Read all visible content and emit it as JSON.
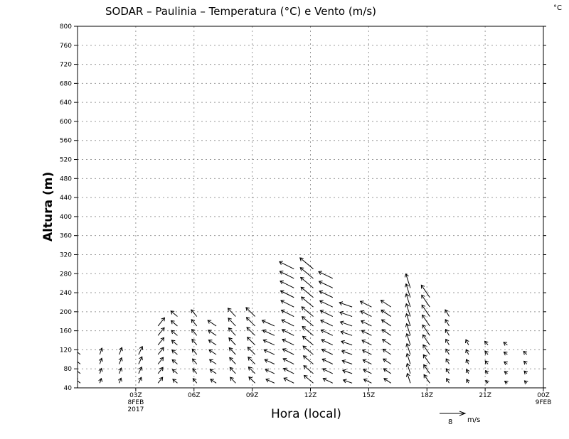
{
  "chart_data": {
    "type": "wind_barb_profile",
    "title": "SODAR – Paulinia – Temperatura (°C) e Vento (m/s)",
    "unit_corner": "°C",
    "ylabel": "Altura (m)",
    "xlabel": "Hora (local)",
    "ylim": [
      40,
      800
    ],
    "y_ticks": [
      40,
      80,
      120,
      160,
      200,
      240,
      280,
      320,
      360,
      400,
      440,
      480,
      520,
      560,
      600,
      640,
      680,
      720,
      760,
      800
    ],
    "xlim_hours": [
      0,
      24
    ],
    "x_ticks": [
      {
        "hour": 3,
        "label": "03Z",
        "sub": [
          "8FEB",
          "2017"
        ]
      },
      {
        "hour": 6,
        "label": "06Z",
        "sub": []
      },
      {
        "hour": 9,
        "label": "09Z",
        "sub": []
      },
      {
        "hour": 12,
        "label": "12Z",
        "sub": []
      },
      {
        "hour": 15,
        "label": "15Z",
        "sub": []
      },
      {
        "hour": 18,
        "label": "18Z",
        "sub": []
      },
      {
        "hour": 21,
        "label": "21Z",
        "sub": []
      },
      {
        "hour": 24,
        "label": "00Z",
        "sub": [
          "9FEB"
        ]
      }
    ],
    "grid": true,
    "reference_vector": {
      "speed": 8,
      "unit": "m/s"
    },
    "wind_columns": [
      {
        "hour": 0.0,
        "top": 120,
        "u": -1.5,
        "v": 1.2
      },
      {
        "hour": 1.0,
        "top": 120,
        "u": 0.4,
        "v": 1.2
      },
      {
        "hour": 2.0,
        "top": 120,
        "u": 0.5,
        "v": 1.3
      },
      {
        "hour": 3.0,
        "top": 120,
        "u": 0.7,
        "v": 1.5
      },
      {
        "hour": 4.0,
        "top": 180,
        "u": 1.2,
        "v": 1.5
      },
      {
        "hour": 5.0,
        "top": 200,
        "u": -1.2,
        "v": 1.0
      },
      {
        "hour": 6.0,
        "top": 190,
        "u": -1.0,
        "v": 1.2
      },
      {
        "hour": 7.0,
        "top": 170,
        "u": -1.5,
        "v": 1.0
      },
      {
        "hour": 8.0,
        "top": 200,
        "u": -1.4,
        "v": 1.5
      },
      {
        "hour": 9.0,
        "top": 190,
        "u": -1.6,
        "v": 1.6
      },
      {
        "hour": 10.0,
        "top": 170,
        "u": -2.2,
        "v": 1.0
      },
      {
        "hour": 11.0,
        "top": 300,
        "u": -2.6,
        "v": 1.3
      },
      {
        "hour": 12.0,
        "top": 300,
        "u": -2.4,
        "v": 2.0
      },
      {
        "hour": 13.0,
        "top": 270,
        "u": -2.5,
        "v": 1.2
      },
      {
        "hour": 14.0,
        "top": 220,
        "u": -2.3,
        "v": 0.8
      },
      {
        "hour": 15.0,
        "top": 210,
        "u": -2.0,
        "v": 1.0
      },
      {
        "hour": 16.0,
        "top": 210,
        "u": -1.8,
        "v": 1.2
      },
      {
        "hour": 17.0,
        "top": 250,
        "u": -0.8,
        "v": 2.5
      },
      {
        "hour": 18.0,
        "top": 230,
        "u": -1.5,
        "v": 2.2
      },
      {
        "hour": 19.0,
        "top": 190,
        "u": -0.7,
        "v": 1.2
      },
      {
        "hour": 20.0,
        "top": 140,
        "u": -0.5,
        "v": 1.0
      },
      {
        "hour": 21.0,
        "top": 140,
        "u": -0.6,
        "v": 0.7
      },
      {
        "hour": 22.0,
        "top": 140,
        "u": -0.7,
        "v": 0.5
      },
      {
        "hour": 23.0,
        "top": 120,
        "u": -0.6,
        "v": 0.6
      }
    ]
  }
}
